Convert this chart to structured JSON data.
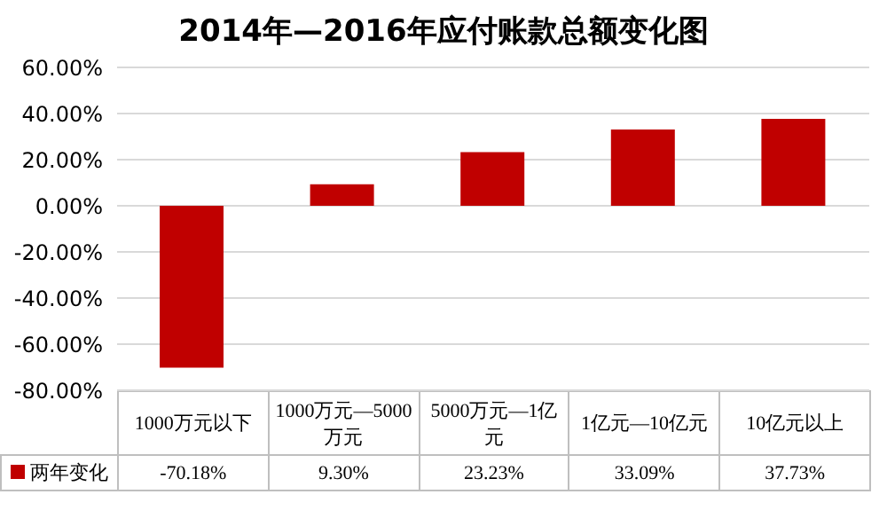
{
  "chart_data": {
    "type": "bar",
    "title": "2014年—2016年应付账款总额变化图",
    "categories": [
      "1000万元以下",
      "1000万元—5000万元",
      "5000万元—1亿元",
      "1亿元—10亿元",
      "10亿元以上"
    ],
    "series": [
      {
        "name": "两年变化",
        "color": "#c00000",
        "values": [
          -70.18,
          9.3,
          23.23,
          33.09,
          37.73
        ],
        "value_labels": [
          "-70.18%",
          "9.30%",
          "23.23%",
          "33.09%",
          "37.73%"
        ]
      }
    ],
    "ylim": [
      -80,
      60
    ],
    "yticks": [
      {
        "value": -80,
        "label": "-80.00%"
      },
      {
        "value": -60,
        "label": "-60.00%"
      },
      {
        "value": -40,
        "label": "-40.00%"
      },
      {
        "value": -20,
        "label": "-20.00%"
      },
      {
        "value": 0,
        "label": "0.00%"
      },
      {
        "value": 20,
        "label": "20.00%"
      },
      {
        "value": 40,
        "label": "40.00%"
      },
      {
        "value": 60,
        "label": "60.00%"
      }
    ],
    "grid": "y",
    "legend": "bottom"
  }
}
